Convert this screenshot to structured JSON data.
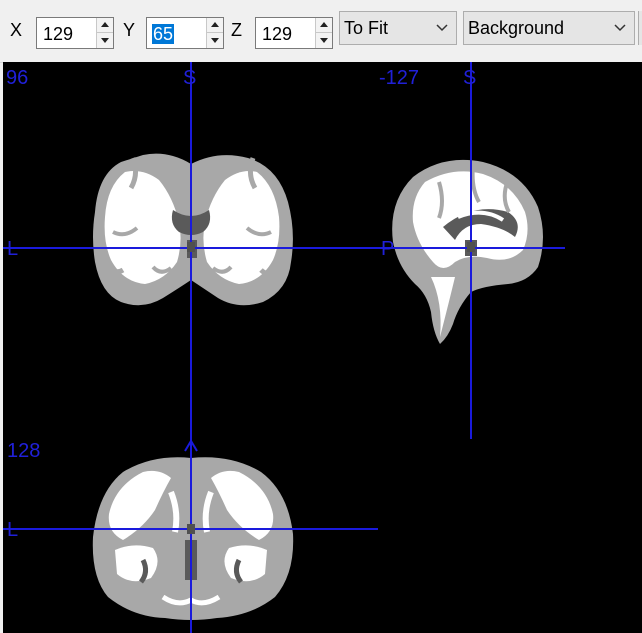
{
  "toolbar": {
    "x_label": "X",
    "x_value": "129",
    "y_label": "Y",
    "y_value": "65",
    "z_label": "Z",
    "z_value": "129",
    "zoom_value": "To Fit",
    "layer_value": "Background"
  },
  "viewer": {
    "coronal_slice": "96",
    "sagittal_slice": "-127",
    "axial_slice": "128",
    "coronal_top_marker": "S",
    "coronal_left_marker": "L",
    "sagittal_top_marker": "S",
    "sagittal_left_marker": "P",
    "axial_left_marker": "L",
    "crosshair_color": "#1a1adc",
    "gray_matter_color": "#a8a8a8",
    "white_matter_color": "#ffffff",
    "csf_color": "#5a5a5a"
  }
}
